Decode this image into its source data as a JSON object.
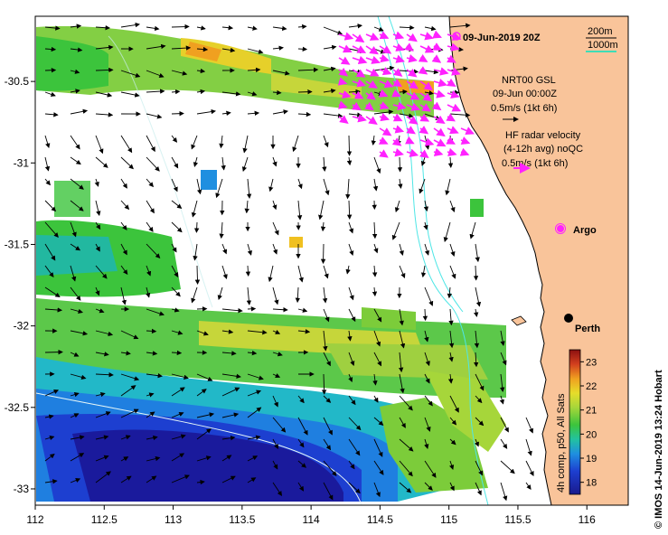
{
  "map": {
    "title": "09-Jun-2019 20Z",
    "scale": {
      "depth1": "200m",
      "depth2": "1000m",
      "line2_color": "#00e5c0"
    },
    "legend_model": {
      "line1": "NRT00 GSL",
      "line2": "09-Jun 00:00Z",
      "line3": "0.5m/s (1kt 6h)"
    },
    "legend_radar": {
      "line1": "HF radar velocity",
      "line2": "(4-12h avg) noQC",
      "line3": "0.5m/s (1kt 6h)"
    },
    "argo_label": "Argo",
    "city_label": "Perth",
    "credit": "© IMOS 14-Jun-2019 13:24 Hobart",
    "colors": {
      "land": "#f9c49a",
      "magenta": "#ff22ff",
      "coast": "#000000",
      "isobath": "#4fe6e6"
    },
    "x_ticks": [
      "112",
      "112.5",
      "113",
      "113.5",
      "114",
      "114.5",
      "115",
      "115.5",
      "116"
    ],
    "y_ticks": [
      "-30.5",
      "-31",
      "-31.5",
      "-32",
      "-32.5",
      "-33"
    ],
    "x_range": [
      112,
      116.3
    ],
    "y_range": [
      -33.1,
      -30.1
    ],
    "colorbar": {
      "label": "4h comp, p50, All Sats",
      "ticks": [
        "23",
        "22",
        "21",
        "20",
        "19",
        "18"
      ],
      "min": 17.5,
      "max": 23.5
    }
  }
}
